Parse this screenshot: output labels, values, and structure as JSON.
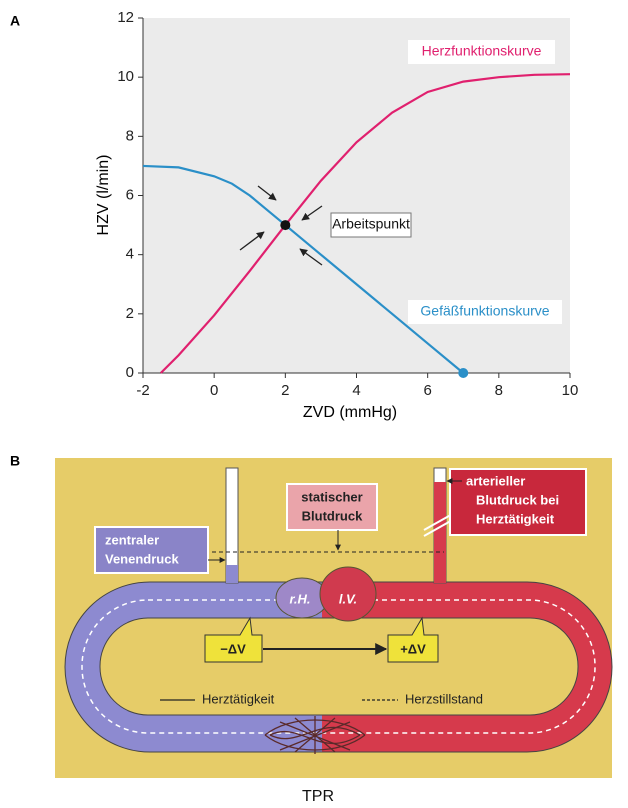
{
  "panels": {
    "a": "A",
    "b": "B"
  },
  "chart_data": {
    "type": "line",
    "x_label": "ZVD (mmHg)",
    "y_label": "HZV (l/min)",
    "xlim": [
      -2,
      10
    ],
    "xticks": [
      -2,
      0,
      2,
      4,
      6,
      8,
      10
    ],
    "ylim": [
      0,
      12
    ],
    "yticks": [
      0,
      2,
      4,
      6,
      8,
      10,
      12
    ],
    "grid": false,
    "series": [
      {
        "name": "Herzfunktionskurve",
        "color": "#e0206e",
        "x": [
          -1.5,
          -1,
          0,
          1,
          2,
          3,
          4,
          5,
          6,
          7,
          8,
          9,
          10
        ],
        "values": [
          0,
          0.6,
          1.95,
          3.45,
          5.0,
          6.5,
          7.8,
          8.8,
          9.5,
          9.85,
          10.0,
          10.08,
          10.1
        ]
      },
      {
        "name": "Gefäßfunktionskurve",
        "color": "#2a8fc8",
        "x": [
          -2,
          -1,
          0,
          0.5,
          1,
          1.5,
          2,
          3,
          4,
          5,
          6,
          7
        ],
        "values": [
          7.0,
          6.95,
          6.65,
          6.4,
          6.0,
          5.5,
          5.0,
          4.0,
          3.0,
          2.0,
          1.0,
          0
        ]
      }
    ],
    "working_point": {
      "label": "Arbeitspunkt",
      "x": 2,
      "y": 5
    }
  },
  "diagram": {
    "venous_pressure": [
      "zentraler",
      "Venendruck"
    ],
    "static_pressure": [
      "statischer",
      "Blutdruck"
    ],
    "arterial_pressure": [
      "arterieller",
      "Blutdruck bei",
      "Herztätigkeit"
    ],
    "right_heart": "r.H.",
    "left_ventricle": "l.V.",
    "minus_dv": "−ΔV",
    "plus_dv": "+ΔV",
    "legend": [
      "Herztätigkeit",
      "Herzstillstand"
    ],
    "resistance": "TPR"
  }
}
